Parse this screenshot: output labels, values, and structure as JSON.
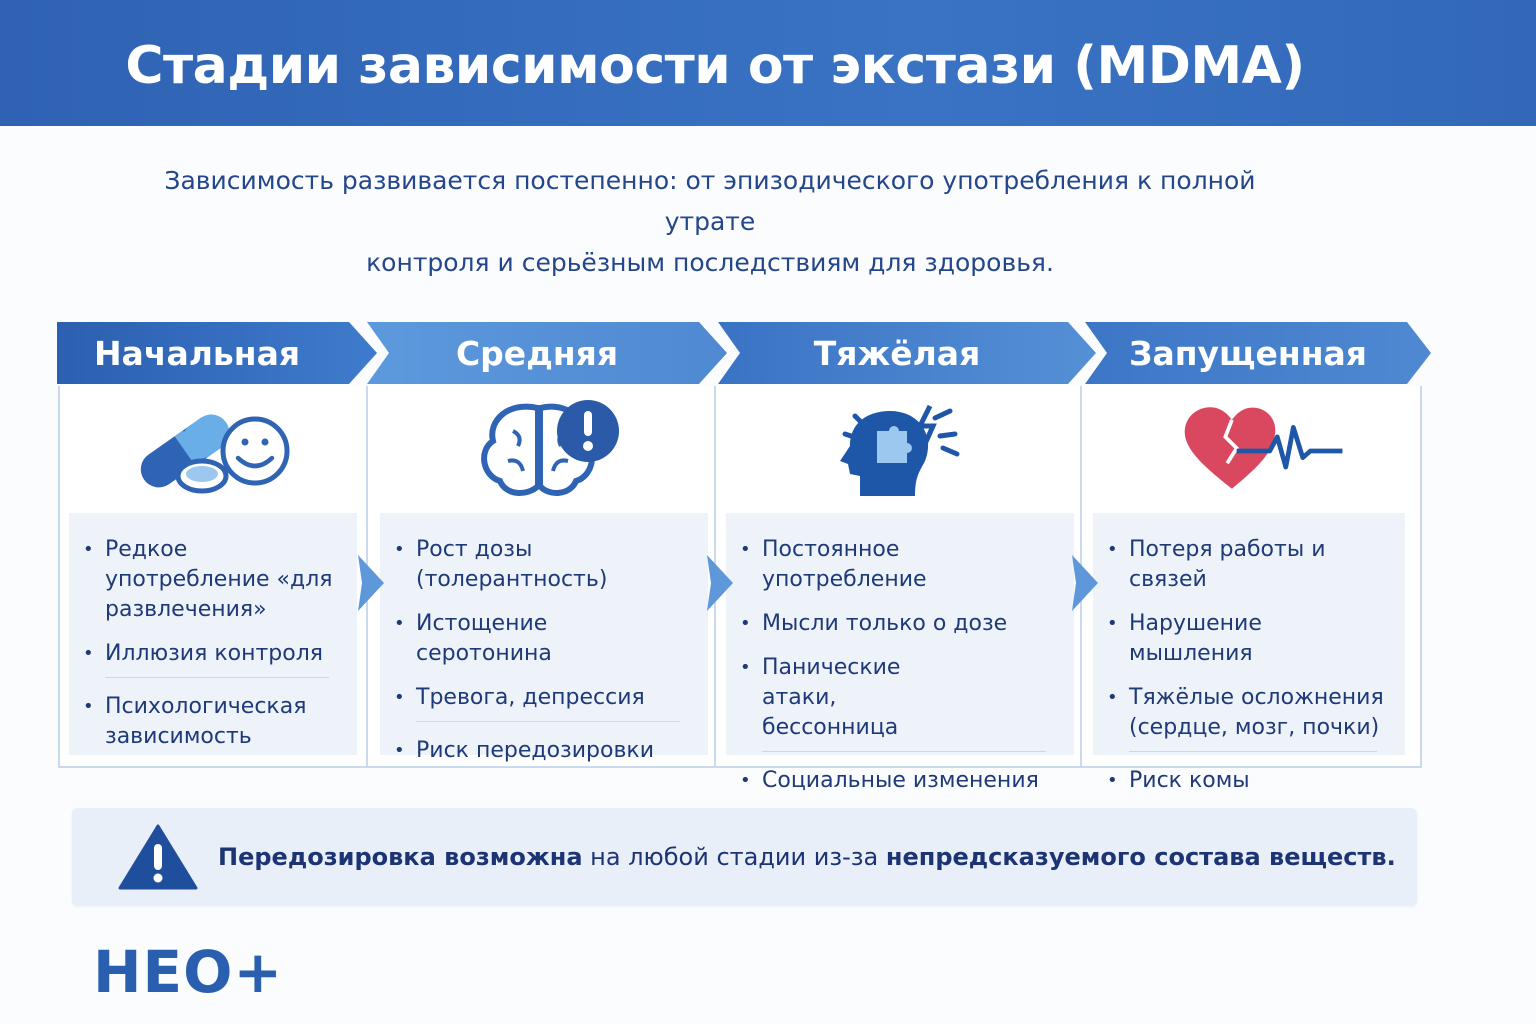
{
  "title": "Стадии зависимости от экстази (MDMA)",
  "subtitle": [
    "Зависимость развивается постепенно: от эпизодического употребления к полной утрате",
    "контроля и серьёзным последствиям для здоровья."
  ],
  "colors": {
    "header": "#3368b8",
    "stage_dark": "#2f64b4",
    "stage_light": "#5c98dc",
    "text": "#1f3a78",
    "heart": "#d9485f"
  },
  "stages": [
    {
      "label": "Начальная",
      "icon": "pills-smiley-icon",
      "items": [
        "Редкое употребление «для развлечения»",
        "Иллюзия контроля",
        "Психологическая зависимость"
      ]
    },
    {
      "label": "Средняя",
      "icon": "brain-alert-icon",
      "items": [
        "Рост дозы (толерантность)",
        "Истощение серотонина",
        "Тревога, депрессия",
        "Риск передозировки"
      ]
    },
    {
      "label": "Тяжёлая",
      "icon": "head-puzzle-icon",
      "items": [
        "Постоянное употребление",
        "Мысли только о дозе",
        "Панические атаки, бессонница",
        "Социальные изменения"
      ]
    },
    {
      "label": "Запущенная",
      "icon": "broken-heart-pulse-icon",
      "items": [
        "Потеря работы и связей",
        "Нарушение мышления",
        "Тяжёлые осложнения (сердце, мозг, почки)",
        "Риск комы"
      ]
    }
  ],
  "warning": {
    "icon": "warning-triangle-icon",
    "bold1": "Передозировка возможна",
    "normal": " на любой стадии из-за ",
    "bold2": "непредсказуемого состава веществ."
  },
  "logo": "НЕО+"
}
